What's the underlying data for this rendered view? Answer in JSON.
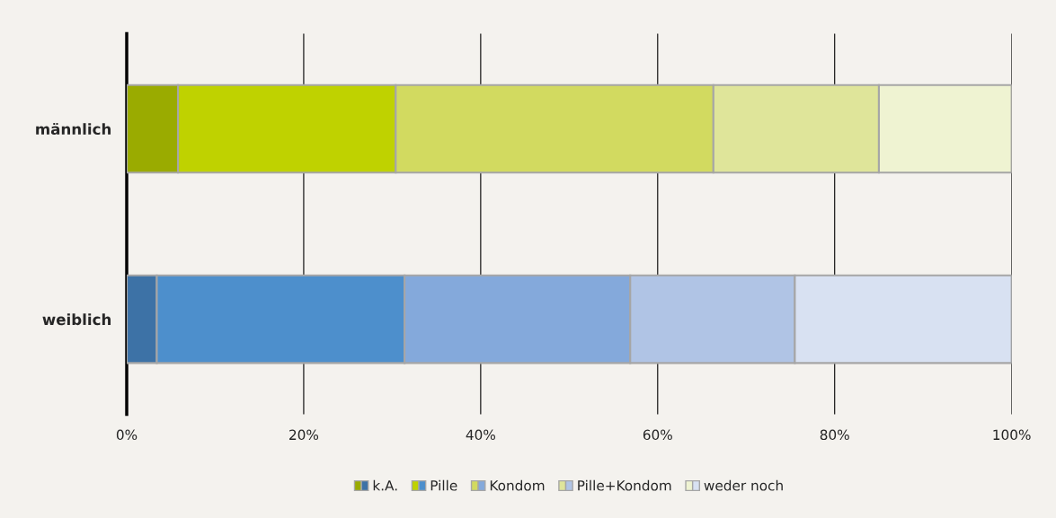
{
  "chart_data": {
    "type": "bar",
    "orientation": "horizontal",
    "stacked": true,
    "categories": [
      "männlich",
      "weiblich"
    ],
    "series": [
      {
        "name": "k.A.",
        "colors": [
          "#9aab00",
          "#3d72a6"
        ],
        "values": [
          5.8,
          3.4
        ]
      },
      {
        "name": "Pille",
        "colors": [
          "#bfd200",
          "#4d8fcc"
        ],
        "values": [
          24.6,
          28.0
        ]
      },
      {
        "name": "Kondom",
        "colors": [
          "#d2da60",
          "#84a9db"
        ],
        "values": [
          35.9,
          25.5
        ]
      },
      {
        "name": "Pille+Kondom",
        "colors": [
          "#dfe59a",
          "#b0c4e5"
        ],
        "values": [
          18.7,
          18.6
        ]
      },
      {
        "name": "weder noch",
        "colors": [
          "#eff3d2",
          "#d8e1f2"
        ],
        "values": [
          15.0,
          24.5
        ]
      }
    ],
    "xlim": [
      0,
      100
    ],
    "xticks": [
      {
        "value": 0,
        "label": "0%"
      },
      {
        "value": 20,
        "label": "20%"
      },
      {
        "value": 40,
        "label": "40%"
      },
      {
        "value": 60,
        "label": "60%"
      },
      {
        "value": 80,
        "label": "80%"
      },
      {
        "value": 100,
        "label": "100%"
      }
    ],
    "grid": "x",
    "legend": "bottom"
  }
}
